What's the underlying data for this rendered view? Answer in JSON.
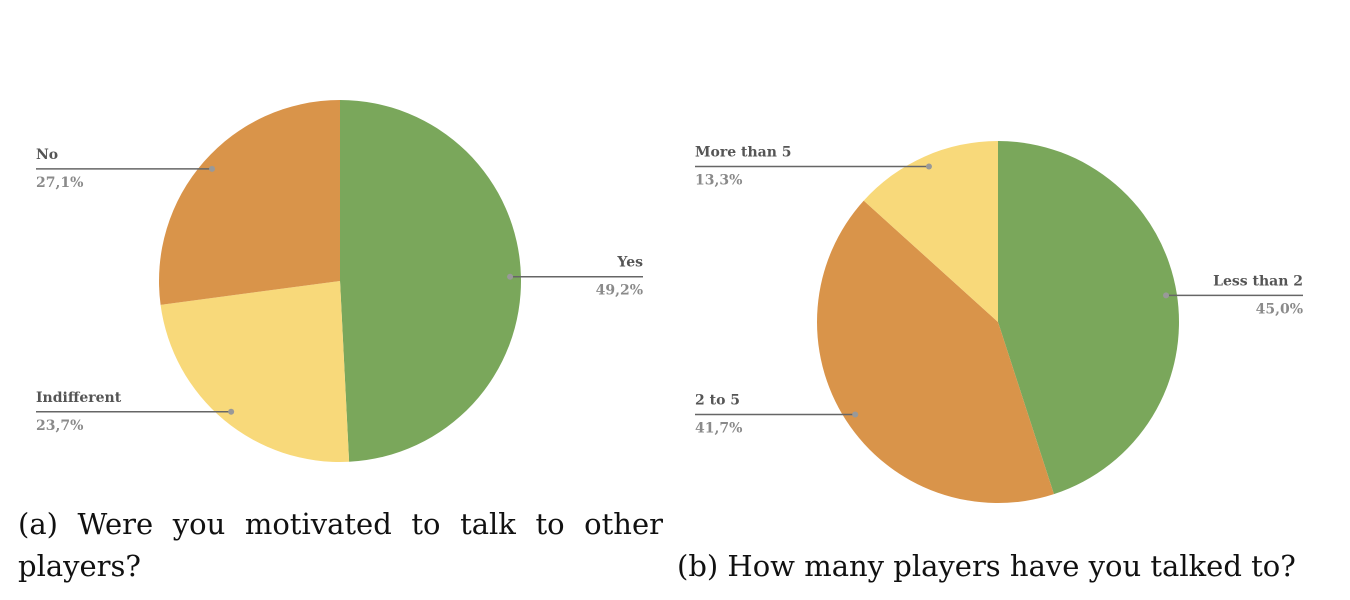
{
  "chart_data": [
    {
      "type": "pie",
      "title": "(a) Were you motivated to talk to other players?",
      "categories": [
        "Yes",
        "Indifferent",
        "No"
      ],
      "values": [
        49.2,
        23.7,
        27.1
      ],
      "value_labels": [
        "49,2%",
        "23,7%",
        "27,1%"
      ],
      "colors": [
        "#7aa75b",
        "#f8d97a",
        "#d9944a"
      ]
    },
    {
      "type": "pie",
      "title": "(b) How many players have you talked to?",
      "categories": [
        "Less than 2",
        "2 to 5",
        "More than 5"
      ],
      "values": [
        45.0,
        41.7,
        13.3
      ],
      "value_labels": [
        "45,0%",
        "41,7%",
        "13,3%"
      ],
      "colors": [
        "#7aa75b",
        "#d9944a",
        "#f8d97a"
      ]
    }
  ]
}
